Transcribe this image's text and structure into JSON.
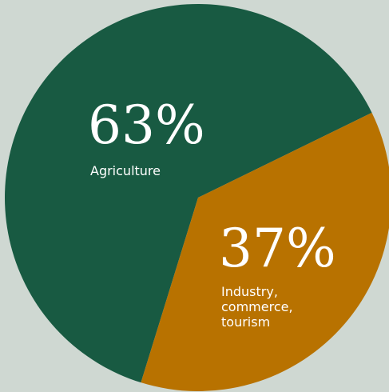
{
  "chart_data": {
    "type": "pie",
    "title": "",
    "slices": [
      {
        "value": 63,
        "value_label": "63%",
        "label_lines": [
          "Agriculture"
        ],
        "color": "#185a42"
      },
      {
        "value": 37,
        "value_label": "37%",
        "label_lines": [
          "Industry,",
          "commerce,",
          "tourism"
        ],
        "color": "#b87200"
      }
    ],
    "background_color": "#cfd8d2"
  }
}
